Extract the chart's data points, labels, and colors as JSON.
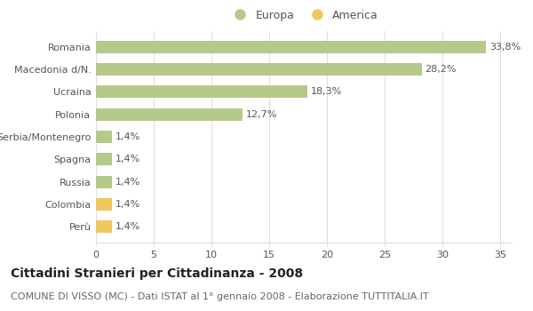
{
  "categories": [
    "Perù",
    "Colombia",
    "Russia",
    "Spagna",
    "Serbia/Montenegro",
    "Polonia",
    "Ucraina",
    "Macedonia d/N.",
    "Romania"
  ],
  "values": [
    1.4,
    1.4,
    1.4,
    1.4,
    1.4,
    12.7,
    18.3,
    28.2,
    33.8
  ],
  "labels": [
    "1,4%",
    "1,4%",
    "1,4%",
    "1,4%",
    "1,4%",
    "12,7%",
    "18,3%",
    "28,2%",
    "33,8%"
  ],
  "colors": [
    "#f0c75e",
    "#f0c75e",
    "#b5c98a",
    "#b5c98a",
    "#b5c98a",
    "#b5c98a",
    "#b5c98a",
    "#b5c98a",
    "#b5c98a"
  ],
  "europa_color": "#b5c98a",
  "america_color": "#f0c75e",
  "legend_europa": "Europa",
  "legend_america": "America",
  "title": "Cittadini Stranieri per Cittadinanza - 2008",
  "subtitle": "COMUNE DI VISSO (MC) - Dati ISTAT al 1° gennaio 2008 - Elaborazione TUTTITALIA.IT",
  "xlim": [
    0,
    36
  ],
  "xticks": [
    0,
    5,
    10,
    15,
    20,
    25,
    30,
    35
  ],
  "bg_color": "#ffffff",
  "grid_color": "#dddddd",
  "title_fontsize": 10,
  "subtitle_fontsize": 8,
  "bar_height": 0.55,
  "label_fontsize": 8,
  "tick_fontsize": 8
}
